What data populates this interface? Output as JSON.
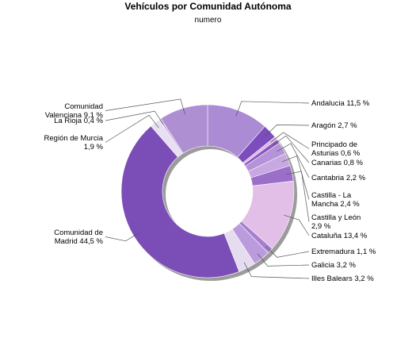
{
  "chart_data": {
    "type": "pie",
    "variant": "donut",
    "title": "Vehículos por Comunidad Autónoma",
    "subtitle": "numero",
    "slices": [
      {
        "name": "Andalucia",
        "value": 11.5,
        "label": [
          "Andalucia 11,5 %"
        ],
        "color": "#ab8bd3",
        "side": "right"
      },
      {
        "name": "Aragón",
        "value": 2.7,
        "label": [
          "Aragón 2,7 %"
        ],
        "color": "#7d4cbd",
        "side": "right"
      },
      {
        "name": "Principado de Asturias",
        "value": 0.6,
        "label": [
          "Principado de",
          "Asturias 0,6 %"
        ],
        "color": "#d5b8e6",
        "side": "right"
      },
      {
        "name": "Canarias",
        "value": 0.8,
        "label": [
          "Canarias 0,8 %"
        ],
        "color": "#8e53bf",
        "side": "right"
      },
      {
        "name": "Cantabria",
        "value": 2.2,
        "label": [
          "Cantabria 2,2 %"
        ],
        "color": "#b493d8",
        "side": "right"
      },
      {
        "name": "Castilla - La Mancha",
        "value": 2.4,
        "label": [
          "Castilla - La",
          "Mancha 2,4 %"
        ],
        "color": "#c7a8e0",
        "side": "right"
      },
      {
        "name": "Castilla y León",
        "value": 2.9,
        "label": [
          "Castilla y León",
          "2,9 %"
        ],
        "color": "#9b6fc9",
        "side": "right"
      },
      {
        "name": "Cataluña",
        "value": 13.4,
        "label": [
          "Cataluña 13,4 %"
        ],
        "color": "#e2bfe6",
        "side": "right"
      },
      {
        "name": "Extremadura",
        "value": 1.1,
        "label": [
          "Extremadura 1,1 %"
        ],
        "color": "#a77fd0",
        "side": "right"
      },
      {
        "name": "Galicia",
        "value": 3.2,
        "label": [
          "Galicia 3,2 %"
        ],
        "color": "#bb9bdc",
        "side": "right"
      },
      {
        "name": "Illes Balears",
        "value": 3.2,
        "label": [
          "Illes Balears 3,2 %"
        ],
        "color": "#e6dcf0",
        "side": "right"
      },
      {
        "name": "Comunidad de Madrid",
        "value": 44.5,
        "label": [
          "Comunidad de",
          "Madrid 44,5 %"
        ],
        "color": "#7b4db6",
        "side": "left"
      },
      {
        "name": "Región de Murcia",
        "value": 1.9,
        "label": [
          "Región de Murcia",
          "1,9 %"
        ],
        "color": "#e8dff2",
        "side": "left"
      },
      {
        "name": "La Rioja",
        "value": 0.4,
        "label": [
          "La Rioja 0,4 %"
        ],
        "color": "#c9b3e3",
        "side": "left"
      },
      {
        "name": "Comunidad Valenciana",
        "value": 9.1,
        "label": [
          "Comunidad",
          "Valenciana 9,1 %"
        ],
        "color": "#ad8fd2",
        "side": "left"
      }
    ],
    "legend": "none"
  }
}
